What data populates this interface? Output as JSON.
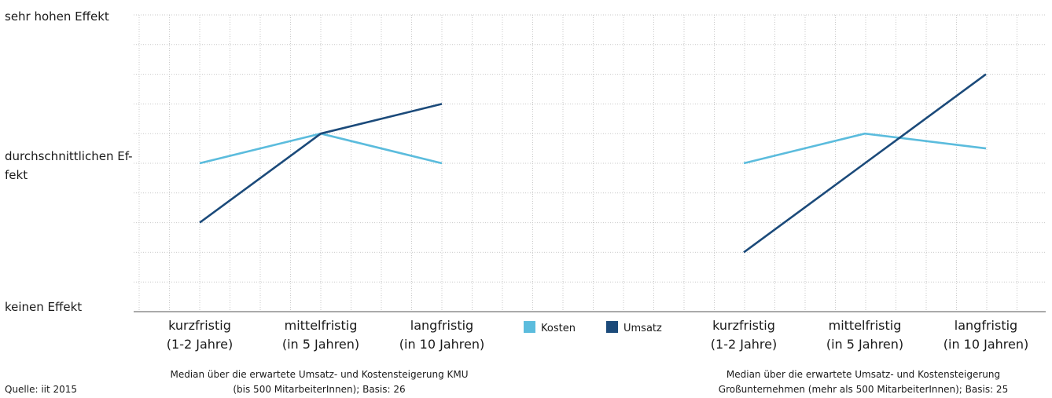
{
  "chart_data": {
    "type": "line",
    "y_axis": {
      "labels": [
        {
          "value": 10,
          "text": "sehr hohen Effekt"
        },
        {
          "value": 5,
          "line1": "durchschnittlichen Ef-",
          "line2": "fekt"
        },
        {
          "value": 0,
          "text": "keinen Effekt"
        }
      ],
      "ylim": [
        0,
        10
      ]
    },
    "categories": [
      {
        "line1": "kurzfristig",
        "line2": "(1-2 Jahre)"
      },
      {
        "line1": "mittelfristig",
        "line2": "(in 5 Jahren)"
      },
      {
        "line1": "langfristig",
        "line2": "(in 10 Jahren)"
      }
    ],
    "legend": {
      "placement": "bottom-center",
      "entries": [
        {
          "name": "Kosten",
          "color": "#5bbcdd"
        },
        {
          "name": "Umsatz",
          "color": "#1b4a7a"
        }
      ]
    },
    "panels": [
      {
        "caption1": "Median über die erwartete Umsatz- und Kostensteigerung KMU",
        "caption2": "(bis 500 MitarbeiterInnen); Basis: 26",
        "series": [
          {
            "name": "Kosten",
            "color": "#5bbcdd",
            "values": [
              5,
              6,
              5
            ]
          },
          {
            "name": "Umsatz",
            "color": "#1b4a7a",
            "values": [
              3,
              6,
              7
            ]
          }
        ]
      },
      {
        "caption1": "Median über die erwartete Umsatz- und Kostensteigerung",
        "caption2": "Großunternehmen (mehr als 500 MitarbeiterInnen); Basis: 25",
        "series": [
          {
            "name": "Kosten",
            "color": "#5bbcdd",
            "values": [
              5,
              6,
              5.5
            ]
          },
          {
            "name": "Umsatz",
            "color": "#1b4a7a",
            "values": [
              2,
              5,
              8
            ]
          }
        ]
      }
    ],
    "source": "Quelle: iit 2015",
    "grid": true
  }
}
